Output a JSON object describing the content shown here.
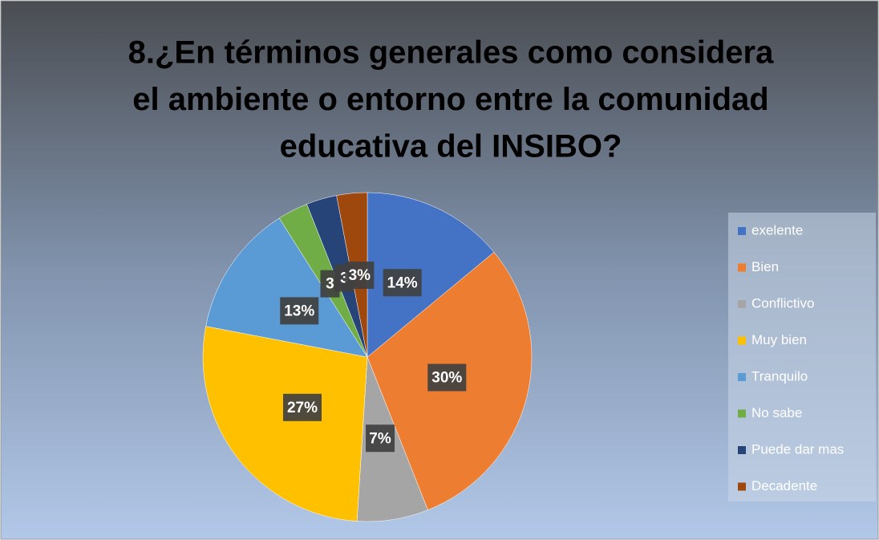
{
  "chart_data": {
    "type": "pie",
    "title": [
      "8.¿En términos generales como considera",
      "el ambiente o entorno entre la comunidad",
      "educativa del INSIBO?"
    ],
    "categories": [
      "exelente",
      "Bien",
      "Conflictivo",
      "Muy bien",
      "Tranquilo",
      "No sabe",
      "Puede dar mas",
      "Decadente"
    ],
    "values": [
      14,
      30,
      7,
      27,
      13,
      3,
      3,
      3
    ],
    "value_labels": [
      "14%",
      "30%",
      "7%",
      "27%",
      "13%",
      "3",
      "3",
      "3%"
    ],
    "colors": [
      "#4472c4",
      "#ed7d31",
      "#a5a5a5",
      "#ffc000",
      "#5b9bd5",
      "#70ad47",
      "#264478",
      "#9e480e"
    ],
    "legend": "right"
  }
}
